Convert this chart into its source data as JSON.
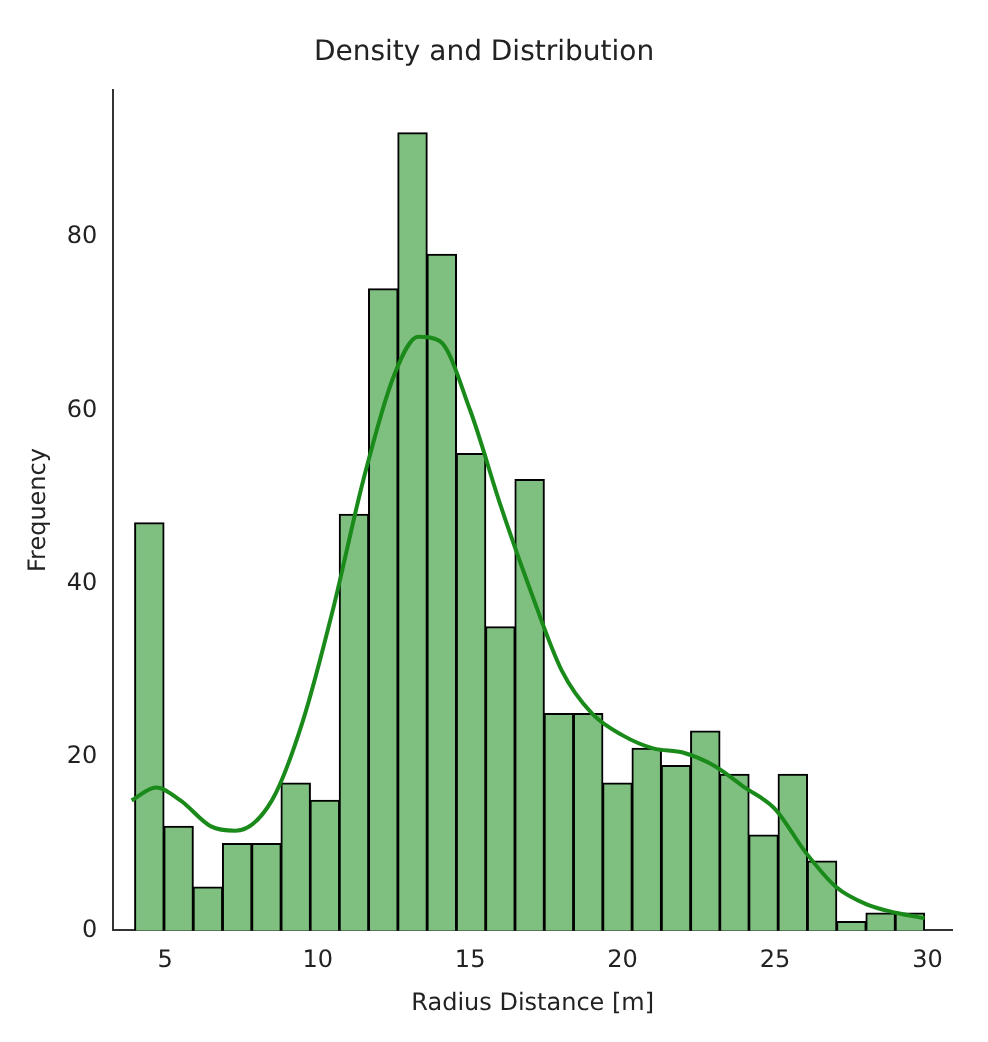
{
  "chart_data": {
    "type": "histogram",
    "title": "Density and Distribution",
    "xlabel": "Radius Distance [m]",
    "ylabel": "Frequency",
    "bins": [
      4.0,
      4.96,
      5.92,
      6.88,
      7.84,
      8.8,
      9.76,
      10.71,
      11.67,
      12.63,
      13.59,
      14.55,
      15.51,
      16.47,
      17.43,
      18.39,
      19.35,
      20.31,
      21.27,
      22.23,
      23.19,
      24.14,
      25.1,
      26.06,
      27.02,
      27.98,
      28.94,
      29.9
    ],
    "values": [
      47,
      12,
      5,
      10,
      10,
      17,
      15,
      48,
      74,
      92,
      78,
      55,
      35,
      52,
      25,
      25,
      17,
      21,
      19,
      23,
      18,
      11,
      18,
      8,
      1,
      2,
      2
    ],
    "color": "#7fbf7f",
    "series": [
      {
        "type": "line",
        "color": "#1a8a1a",
        "x": [
          3.9,
          4.7,
          5.5,
          6.5,
          7.3,
          8.5,
          9.5,
          10.5,
          11.5,
          12.5,
          13.3,
          14,
          15,
          16,
          17,
          18,
          19,
          20,
          21,
          22,
          23,
          24,
          25,
          26,
          27,
          28,
          29,
          29.9
        ],
        "values": [
          15,
          16.5,
          15,
          12,
          11.5,
          15,
          24,
          37,
          52,
          64,
          68.5,
          68,
          60,
          49,
          39,
          30,
          25,
          22.5,
          21,
          20.5,
          19,
          16.5,
          14,
          9,
          5,
          3,
          2,
          1.4
        ]
      }
    ],
    "xlim": [
      3.3,
      30.8
    ],
    "ylim": [
      0,
      97
    ],
    "xticks": [
      5,
      10,
      15,
      20,
      25,
      30
    ],
    "yticks": [
      0,
      20,
      40,
      60,
      80
    ],
    "grid": false,
    "legend": false
  }
}
